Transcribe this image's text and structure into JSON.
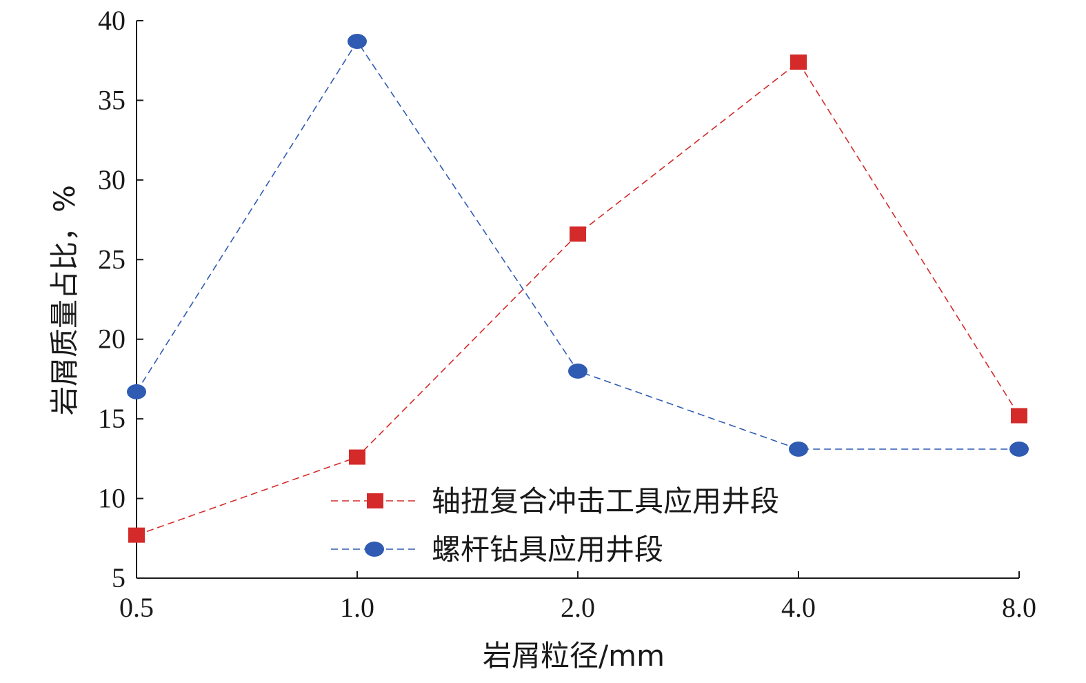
{
  "chart_data": {
    "type": "line",
    "categories": [
      "0.5",
      "1.0",
      "2.0",
      "4.0",
      "8.0"
    ],
    "xlabel": "岩屑粒径/mm",
    "ylabel": "岩屑质量占比，%",
    "ylim": [
      5,
      40
    ],
    "yticks": [
      "5",
      "10",
      "15",
      "20",
      "25",
      "30",
      "35",
      "40"
    ],
    "grid": false,
    "legend_position": "center-bottom",
    "series": [
      {
        "name": "轴扭复合冲击工具应用井段",
        "values": [
          7.7,
          12.6,
          26.6,
          37.4,
          15.2
        ],
        "color": "#d42a2a",
        "marker": "square",
        "line_style": "dashed"
      },
      {
        "name": "螺杆钻具应用井段",
        "values": [
          16.7,
          38.7,
          18.0,
          13.1,
          13.1
        ],
        "color": "#2f5bb3",
        "marker": "circle",
        "line_style": "dashed"
      }
    ]
  }
}
